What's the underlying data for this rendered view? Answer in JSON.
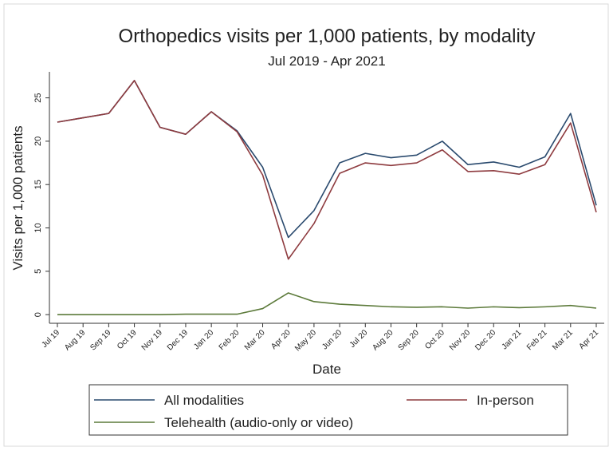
{
  "chart_data": {
    "type": "line",
    "title": "Orthopedics visits per 1,000 patients, by modality",
    "subtitle": "Jul 2019 - Apr 2021",
    "x_label": "Date",
    "y_label": "Visits per 1,000 patients",
    "categories": [
      "Jul 19",
      "Aug 19",
      "Sep 19",
      "Oct 19",
      "Nov 19",
      "Dec 19",
      "Jan 20",
      "Feb 20",
      "Mar 20",
      "Apr 20",
      "May 20",
      "Jun 20",
      "Jul 20",
      "Aug 20",
      "Sep 20",
      "Oct 20",
      "Nov 20",
      "Dec 20",
      "Jan 21",
      "Feb 21",
      "Mar 21",
      "Apr 21"
    ],
    "series": [
      {
        "name": "All modalities",
        "color": "#2a4a6e",
        "values": [
          22.2,
          22.7,
          23.2,
          27.0,
          21.6,
          20.8,
          23.4,
          21.2,
          17.0,
          8.9,
          12.0,
          17.5,
          18.6,
          18.1,
          18.4,
          20.0,
          17.3,
          17.6,
          17.0,
          18.2,
          23.2,
          12.6
        ]
      },
      {
        "name": "In-person",
        "color": "#8e3b3f",
        "values": [
          22.2,
          22.7,
          23.2,
          27.0,
          21.6,
          20.8,
          23.4,
          21.1,
          16.1,
          6.4,
          10.5,
          16.3,
          17.5,
          17.2,
          17.5,
          19.0,
          16.5,
          16.6,
          16.2,
          17.3,
          22.1,
          11.8
        ]
      },
      {
        "name": "Telehealth (audio-only or video)",
        "color": "#5c7a3a",
        "values": [
          0,
          0,
          0,
          0,
          0,
          0.05,
          0.05,
          0.05,
          0.7,
          2.5,
          1.5,
          1.2,
          1.05,
          0.9,
          0.85,
          0.9,
          0.75,
          0.9,
          0.8,
          0.9,
          1.05,
          0.75
        ]
      }
    ],
    "ylim": [
      -1,
      28
    ],
    "yticks": [
      0,
      5,
      10,
      15,
      20,
      25
    ],
    "grid": false,
    "legend": "bottom"
  }
}
